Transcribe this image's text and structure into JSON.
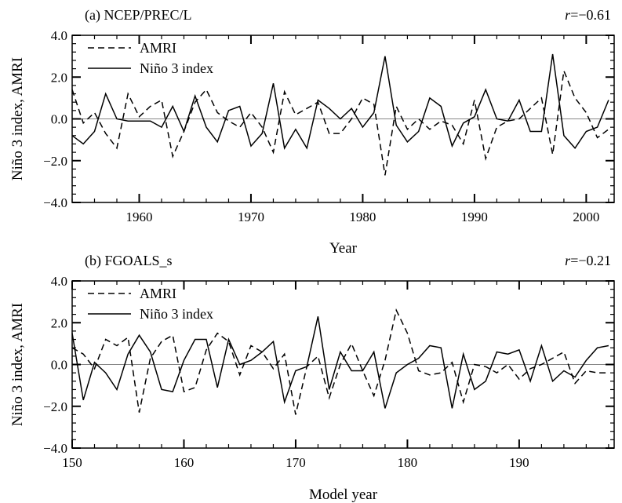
{
  "chart_data": [
    {
      "type": "line",
      "title": "(a) NCEP/PREC/L",
      "annotation_prefix": "r",
      "annotation_value": "=−0.61",
      "xlabel": "Year",
      "ylabel": "Niño 3 index, AMRI",
      "xlim": [
        1954,
        2002.5
      ],
      "ylim": [
        -4.0,
        4.0
      ],
      "xticks": [
        1960,
        1970,
        1980,
        1990,
        2000
      ],
      "yticks": [
        -4.0,
        -2.0,
        0.0,
        2.0,
        4.0
      ],
      "ytick_labels": [
        "−4.0",
        "−2.0",
        "0.0",
        "2.0",
        "4.0"
      ],
      "legend_placement": "top-left",
      "series": [
        {
          "name": "AMRI",
          "style": "dashed",
          "x": [
            1954,
            1955,
            1956,
            1957,
            1958,
            1959,
            1960,
            1961,
            1962,
            1963,
            1964,
            1965,
            1966,
            1967,
            1968,
            1969,
            1970,
            1971,
            1972,
            1973,
            1974,
            1975,
            1976,
            1977,
            1978,
            1979,
            1980,
            1981,
            1982,
            1983,
            1984,
            1985,
            1986,
            1987,
            1988,
            1989,
            1990,
            1991,
            1992,
            1993,
            1994,
            1995,
            1996,
            1997,
            1998,
            1999,
            2000,
            2001,
            2002
          ],
          "values": [
            1.4,
            -0.2,
            0.3,
            -0.7,
            -1.4,
            1.2,
            0.1,
            0.6,
            0.9,
            -1.8,
            -0.6,
            0.8,
            1.4,
            0.3,
            -0.1,
            -0.4,
            0.3,
            -0.4,
            -1.6,
            1.3,
            0.2,
            0.5,
            0.8,
            -0.7,
            -0.7,
            0.0,
            1.0,
            0.7,
            -2.7,
            0.6,
            -0.5,
            0.0,
            -0.5,
            -0.1,
            -0.3,
            -1.2,
            0.9,
            -1.9,
            -0.4,
            -0.1,
            0.0,
            0.5,
            1.0,
            -1.7,
            2.3,
            1.0,
            0.3,
            -0.9,
            -0.5
          ]
        },
        {
          "name": "Niño 3 index",
          "style": "solid",
          "x": [
            1954,
            1955,
            1956,
            1957,
            1958,
            1959,
            1960,
            1961,
            1962,
            1963,
            1964,
            1965,
            1966,
            1967,
            1968,
            1969,
            1970,
            1971,
            1972,
            1973,
            1974,
            1975,
            1976,
            1977,
            1978,
            1979,
            1980,
            1981,
            1982,
            1983,
            1984,
            1985,
            1986,
            1987,
            1988,
            1989,
            1990,
            1991,
            1992,
            1993,
            1994,
            1995,
            1996,
            1997,
            1998,
            1999,
            2000,
            2001,
            2002
          ],
          "values": [
            -0.8,
            -1.2,
            -0.6,
            1.2,
            0.0,
            -0.1,
            -0.1,
            -0.1,
            -0.4,
            0.6,
            -0.6,
            1.1,
            -0.4,
            -1.1,
            0.4,
            0.6,
            -1.3,
            -0.7,
            1.7,
            -1.4,
            -0.5,
            -1.4,
            0.9,
            0.5,
            0.0,
            0.5,
            -0.4,
            0.3,
            3.0,
            -0.3,
            -1.1,
            -0.6,
            1.0,
            0.6,
            -1.3,
            -0.2,
            0.1,
            1.4,
            0.0,
            -0.1,
            0.9,
            -0.6,
            -0.6,
            3.1,
            -0.8,
            -1.4,
            -0.6,
            -0.4,
            0.9
          ]
        }
      ]
    },
    {
      "type": "line",
      "title": "(b) FGOALS_s",
      "annotation_prefix": "r",
      "annotation_value": "=−0.21",
      "xlabel": "Model year",
      "ylabel": "Niño 3 index, AMRI",
      "xlim": [
        150,
        198.5
      ],
      "ylim": [
        -4.0,
        4.0
      ],
      "xticks": [
        150,
        160,
        170,
        180,
        190
      ],
      "yticks": [
        -4.0,
        -2.0,
        0.0,
        2.0,
        4.0
      ],
      "ytick_labels": [
        "−4.0",
        "−2.0",
        "0.0",
        "2.0",
        "4.0"
      ],
      "legend_placement": "top-left",
      "series": [
        {
          "name": "AMRI",
          "style": "dashed",
          "x": [
            150,
            151,
            152,
            153,
            154,
            155,
            156,
            157,
            158,
            159,
            160,
            161,
            162,
            163,
            164,
            165,
            166,
            167,
            168,
            169,
            170,
            171,
            172,
            173,
            174,
            175,
            176,
            177,
            178,
            179,
            180,
            181,
            182,
            183,
            184,
            185,
            186,
            187,
            188,
            189,
            190,
            191,
            192,
            193,
            194,
            195,
            196,
            197,
            198
          ],
          "values": [
            0.8,
            0.5,
            -0.2,
            1.2,
            0.9,
            1.3,
            -2.3,
            0.3,
            1.1,
            1.4,
            -1.3,
            -1.1,
            0.7,
            1.5,
            1.1,
            -0.5,
            0.9,
            0.6,
            -0.2,
            0.5,
            -2.4,
            -0.1,
            0.4,
            -1.6,
            0.0,
            1.0,
            -0.3,
            -1.5,
            0.2,
            2.6,
            1.5,
            -0.3,
            -0.5,
            -0.4,
            0.1,
            -1.8,
            0.0,
            -0.1,
            -0.4,
            0.0,
            -0.7,
            -0.2,
            0.0,
            0.3,
            0.6,
            -0.9,
            -0.3,
            -0.4,
            -0.4
          ]
        },
        {
          "name": "Niño 3 index",
          "style": "solid",
          "x": [
            150,
            151,
            152,
            153,
            154,
            155,
            156,
            157,
            158,
            159,
            160,
            161,
            162,
            163,
            164,
            165,
            166,
            167,
            168,
            169,
            170,
            171,
            172,
            173,
            174,
            175,
            176,
            177,
            178,
            179,
            180,
            181,
            182,
            183,
            184,
            185,
            186,
            187,
            188,
            189,
            190,
            191,
            192,
            193,
            194,
            195,
            196,
            197,
            198
          ],
          "values": [
            1.5,
            -1.7,
            0.1,
            -0.4,
            -1.2,
            0.5,
            1.4,
            0.6,
            -1.2,
            -1.3,
            0.2,
            1.2,
            1.2,
            -1.1,
            1.2,
            0.0,
            0.2,
            0.6,
            1.1,
            -1.8,
            -0.3,
            -0.1,
            2.3,
            -1.2,
            0.6,
            -0.3,
            -0.3,
            0.6,
            -2.1,
            -0.4,
            0.0,
            0.3,
            0.9,
            0.8,
            -2.1,
            0.5,
            -1.2,
            -0.8,
            0.6,
            0.5,
            0.7,
            -0.8,
            0.9,
            -0.8,
            -0.3,
            -0.6,
            0.2,
            0.8,
            0.9
          ]
        }
      ]
    }
  ]
}
